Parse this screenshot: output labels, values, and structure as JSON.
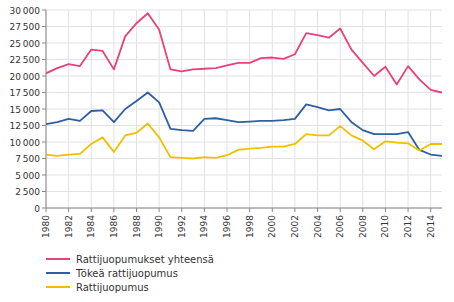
{
  "chart_data": {
    "type": "line",
    "x": [
      1980,
      1981,
      1982,
      1983,
      1984,
      1985,
      1986,
      1987,
      1988,
      1989,
      1990,
      1991,
      1992,
      1993,
      1994,
      1995,
      1996,
      1997,
      1998,
      1999,
      2000,
      2001,
      2002,
      2003,
      2004,
      2005,
      2006,
      2007,
      2008,
      2009,
      2010,
      2011,
      2012,
      2013,
      2014,
      2015
    ],
    "series": [
      {
        "name": "Rattijuopumukset yhteensä",
        "color": "#e8417c",
        "values": [
          20400,
          21200,
          21800,
          21500,
          24000,
          23800,
          21000,
          26000,
          28000,
          29500,
          27000,
          21000,
          20700,
          21000,
          21100,
          21200,
          21600,
          22000,
          22000,
          22700,
          22800,
          22600,
          23300,
          26500,
          26200,
          25800,
          27200,
          24000,
          22000,
          20000,
          21400,
          18700,
          21500,
          19500,
          17900,
          17500
        ]
      },
      {
        "name": "Tökeä rattijuopumus",
        "color": "#2e5fa3",
        "values": [
          12700,
          13000,
          13500,
          13200,
          14700,
          14800,
          13000,
          15000,
          16200,
          17500,
          16000,
          12000,
          11800,
          11700,
          13500,
          13600,
          13300,
          13000,
          13100,
          13200,
          13200,
          13300,
          13500,
          15700,
          15300,
          14800,
          15000,
          13000,
          11800,
          11200,
          11200,
          11200,
          11500,
          8800,
          8100,
          7900
        ]
      },
      {
        "name": "Rattijuopumus",
        "color": "#f0c000",
        "values": [
          8100,
          7900,
          8100,
          8200,
          9700,
          10700,
          8500,
          11000,
          11400,
          12800,
          10700,
          7700,
          7600,
          7500,
          7700,
          7600,
          8000,
          8800,
          9000,
          9100,
          9300,
          9300,
          9700,
          11200,
          11000,
          11000,
          12400,
          11000,
          10200,
          8900,
          10100,
          9900,
          9800,
          8700,
          9700,
          9700
        ]
      }
    ],
    "xlim": [
      1980,
      2015
    ],
    "xticks": [
      1980,
      1982,
      1984,
      1986,
      1988,
      1990,
      1992,
      1994,
      1996,
      1998,
      2000,
      2002,
      2004,
      2006,
      2008,
      2010,
      2012,
      2014
    ],
    "ylim": [
      0,
      30000
    ],
    "yticks": [
      0,
      {
        "value": 2500,
        "label": "2 500"
      },
      {
        "value": 5000,
        "label": "5 000"
      },
      {
        "value": 7500,
        "label": "7 500"
      },
      {
        "value": 10000,
        "label": "10 000"
      },
      {
        "value": 12500,
        "label": "12 500"
      },
      {
        "value": 15000,
        "label": "15 000"
      },
      {
        "value": 17500,
        "label": "17 500"
      },
      {
        "value": 20000,
        "label": "20 000"
      },
      {
        "value": 22500,
        "label": "22 500"
      },
      {
        "value": 25000,
        "label": "25 000"
      },
      {
        "value": 27500,
        "label": "27 500"
      },
      {
        "value": 30000,
        "label": "30 000"
      }
    ],
    "grid": true,
    "legend": "bottom"
  }
}
